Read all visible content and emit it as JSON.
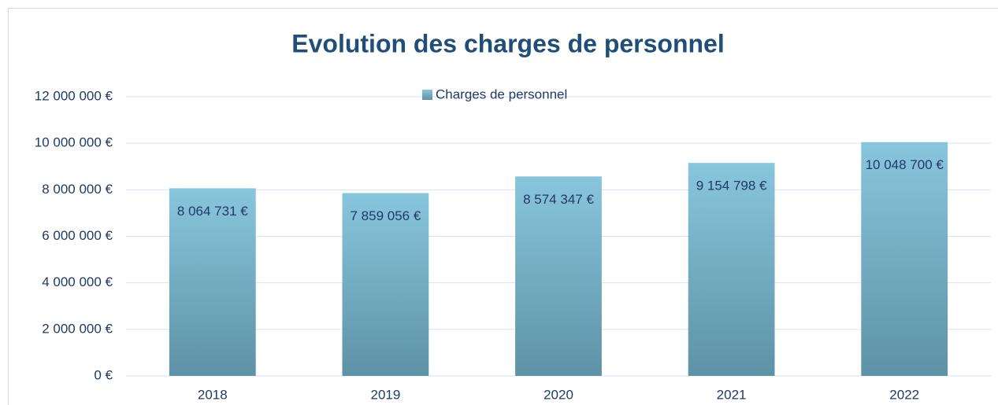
{
  "chart_data": {
    "type": "bar",
    "title": "Evolution des charges de personnel",
    "categories": [
      "2018",
      "2019",
      "2020",
      "2021",
      "2022"
    ],
    "series": [
      {
        "name": "Charges de personnel",
        "color": [
          "#88c6dd",
          "#5e92a6"
        ],
        "values": [
          8064731,
          7859056,
          8574347,
          9154798,
          10048700
        ],
        "value_labels": [
          "8 064 731 €",
          "7 859 056 €",
          "8 574 347 €",
          "9 154 798 €",
          "10 048 700 €"
        ]
      }
    ],
    "ylim": [
      0,
      12000000
    ],
    "yticks": [
      {
        "value": 0,
        "label": "0 €"
      },
      {
        "value": 2000000,
        "label": "2 000 000 €"
      },
      {
        "value": 4000000,
        "label": "4 000 000 €"
      },
      {
        "value": 6000000,
        "label": "6 000 000 €"
      },
      {
        "value": 8000000,
        "label": "8 000 000 €"
      },
      {
        "value": 10000000,
        "label": "10 000 000 €"
      },
      {
        "value": 12000000,
        "label": "12 000 000 €"
      }
    ],
    "grid": true,
    "legend": "top"
  }
}
